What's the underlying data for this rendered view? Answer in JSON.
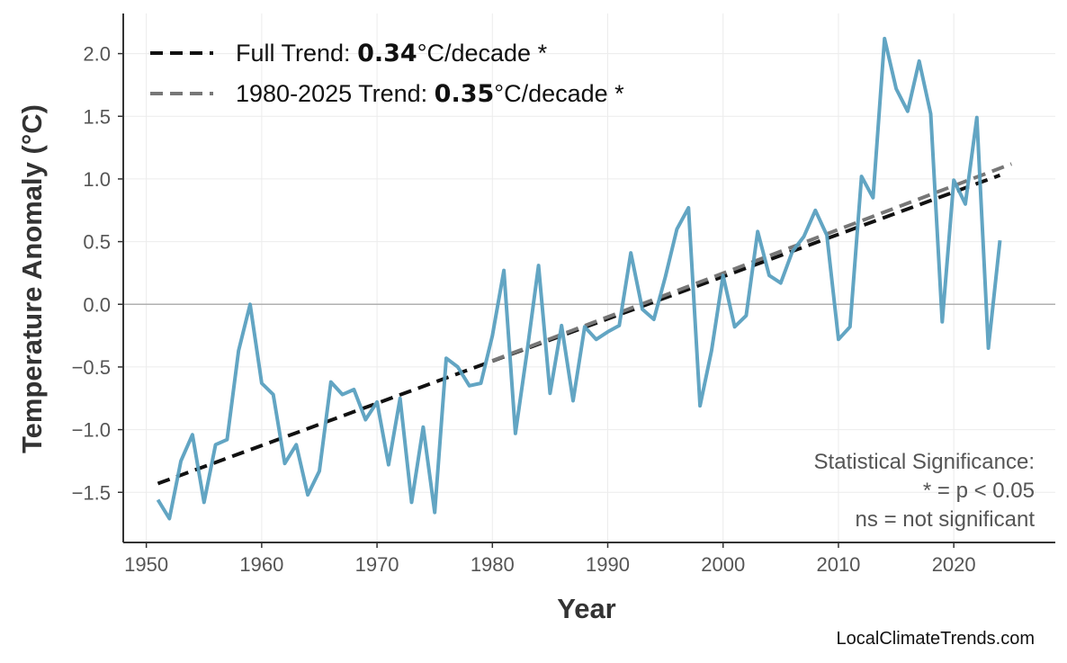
{
  "chart_data": {
    "type": "line",
    "xlabel": "Year",
    "ylabel": "Temperature Anomaly (°C)",
    "xlim": [
      1948,
      2028.8
    ],
    "ylim": [
      -1.9,
      2.32
    ],
    "xticks": [
      1950,
      1960,
      1970,
      1980,
      1990,
      2000,
      2010,
      2020
    ],
    "yticks": [
      -1.5,
      -1.0,
      -0.5,
      0.0,
      0.5,
      1.0,
      1.5,
      2.0
    ],
    "ytick_labels": [
      "−1.5",
      "−1.0",
      "−0.5",
      "0.0",
      "0.5",
      "1.0",
      "1.5",
      "2.0"
    ],
    "grid": true,
    "series_color": "#5aa0c0",
    "x": [
      1951,
      1952,
      1953,
      1954,
      1955,
      1956,
      1957,
      1958,
      1959,
      1960,
      1961,
      1962,
      1963,
      1964,
      1965,
      1966,
      1967,
      1968,
      1969,
      1970,
      1971,
      1972,
      1973,
      1974,
      1975,
      1976,
      1977,
      1978,
      1979,
      1980,
      1981,
      1982,
      1983,
      1984,
      1985,
      1986,
      1987,
      1988,
      1989,
      1990,
      1991,
      1992,
      1993,
      1994,
      1995,
      1996,
      1997,
      1998,
      1999,
      2000,
      2001,
      2002,
      2003,
      2004,
      2005,
      2006,
      2007,
      2008,
      2009,
      2010,
      2011,
      2012,
      2013,
      2014,
      2015,
      2016,
      2017,
      2018,
      2019,
      2020,
      2021,
      2022,
      2023,
      2024
    ],
    "values": [
      -1.56,
      -1.71,
      -1.25,
      -1.04,
      -1.58,
      -1.12,
      -1.08,
      -0.37,
      0.0,
      -0.63,
      -0.72,
      -1.27,
      -1.12,
      -1.52,
      -1.33,
      -0.62,
      -0.72,
      -0.68,
      -0.92,
      -0.78,
      -1.28,
      -0.75,
      -1.58,
      -0.98,
      -1.66,
      -0.43,
      -0.5,
      -0.65,
      -0.63,
      -0.25,
      0.27,
      -1.03,
      -0.38,
      0.31,
      -0.71,
      -0.17,
      -0.77,
      -0.18,
      -0.28,
      -0.22,
      -0.17,
      0.41,
      -0.04,
      -0.12,
      0.22,
      0.6,
      0.77,
      -0.81,
      -0.37,
      0.23,
      -0.18,
      -0.09,
      0.58,
      0.23,
      0.17,
      0.42,
      0.54,
      0.75,
      0.55,
      -0.28,
      -0.18,
      1.02,
      0.85,
      2.12,
      1.72,
      1.54,
      1.94,
      1.52,
      -0.14,
      0.99,
      0.8,
      1.49,
      -0.35,
      0.51
    ],
    "trends": [
      {
        "name_prefix": "Full Trend: ",
        "rate": "0.34",
        "suffix": "°C/decade *",
        "x": [
          1951,
          2024
        ],
        "y": [
          -1.43,
          1.03
        ],
        "color": "#111111"
      },
      {
        "name_prefix": "1980-2025 Trend: ",
        "rate": "0.35",
        "suffix": "°C/decade *",
        "x": [
          1980,
          2025
        ],
        "y": [
          -0.45,
          1.12
        ],
        "color": "#777777"
      }
    ],
    "annotation": [
      "Statistical Significance:",
      "* = p < 0.05",
      "ns = not significant"
    ],
    "source": "LocalClimateTrends.com"
  }
}
